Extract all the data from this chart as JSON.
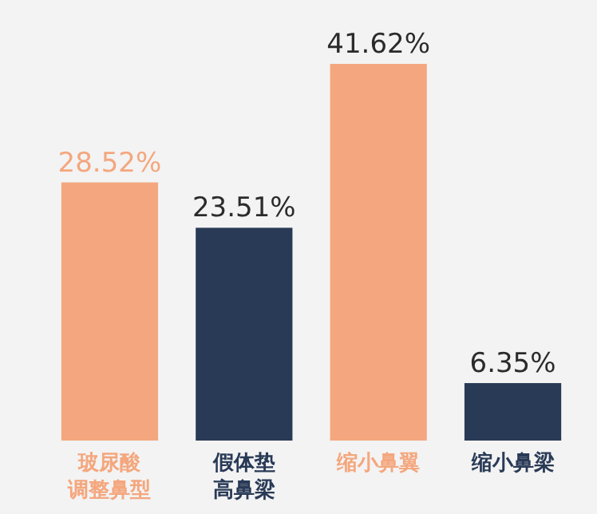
{
  "chart_data": {
    "type": "bar",
    "categories": [
      "玻尿酸调整鼻型",
      "假体垫高鼻梁",
      "缩小鼻翼",
      "缩小鼻梁"
    ],
    "values": [
      28.52,
      23.51,
      41.62,
      6.35
    ],
    "colors": [
      "#f4a77e",
      "#293a56",
      "#f4a77e",
      "#293a56"
    ],
    "value_labels": [
      "28.52%",
      "23.51%",
      "41.62%",
      "6.35%"
    ]
  }
}
